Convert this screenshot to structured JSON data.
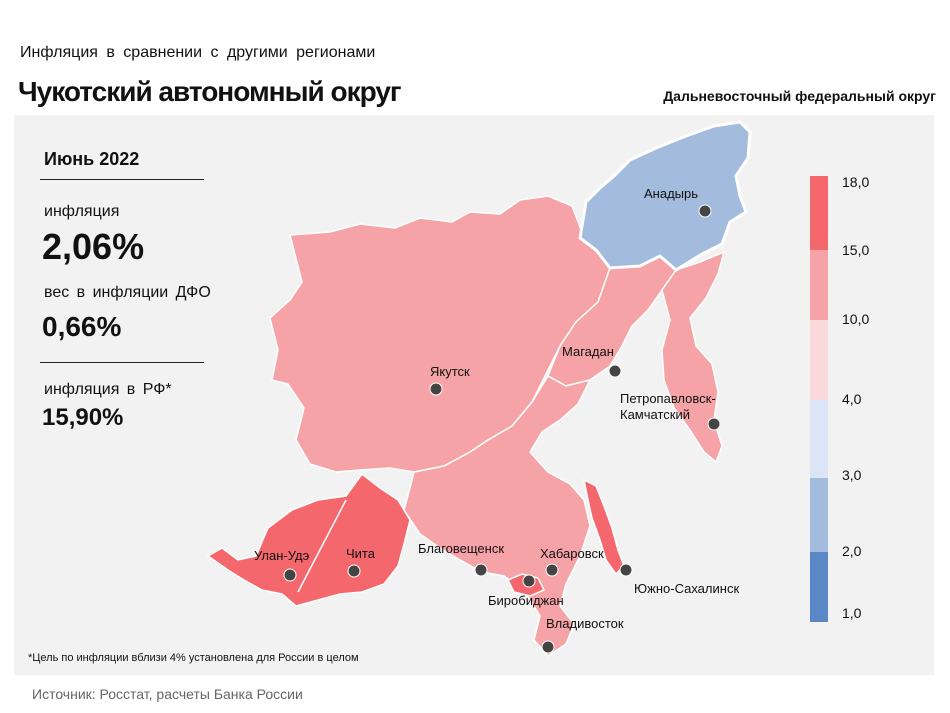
{
  "header": {
    "subtitle": "Инфляция в сравнении с другими регионами",
    "title": "Чукотский автономный округ",
    "district": "Дальневосточный федеральный округ"
  },
  "stats": {
    "period": "Июнь 2022",
    "inflation_label": "инфляция",
    "inflation_value": "2,06%",
    "weight_label": "вес в инфляции ДФО",
    "weight_value": "0,66%",
    "rf_label": "инфляция в РФ*",
    "rf_value": "15,90%"
  },
  "cities": [
    {
      "name": "Анадырь"
    },
    {
      "name": "Якутск"
    },
    {
      "name": "Магадан"
    },
    {
      "name": "Петропавловск-"
    },
    {
      "name": "Камчатский"
    },
    {
      "name": "Улан-Удэ"
    },
    {
      "name": "Чита"
    },
    {
      "name": "Благовещенск"
    },
    {
      "name": "Хабаровск"
    },
    {
      "name": "Биробиджан"
    },
    {
      "name": "Южно-Сахалинск"
    },
    {
      "name": "Владивосток"
    }
  ],
  "legend": {
    "ticks": [
      "18,0",
      "15,0",
      "10,0",
      "4,0",
      "3,0",
      "2,0",
      "1,0"
    ],
    "colors": [
      "#f4686d",
      "#f5a3a6",
      "#f9d9db",
      "#dbe5f5",
      "#a3bbdc",
      "#5a87c5"
    ]
  },
  "colors": {
    "high": "#f4686d",
    "mid": "#f5a3a6",
    "low": "#a3bbdc",
    "highlight_border": "#ffffff"
  },
  "footnote": "*Цель по инфляции вблизи 4% установлена для России в целом",
  "source": "Источник: Росстат, расчеты Банка России"
}
